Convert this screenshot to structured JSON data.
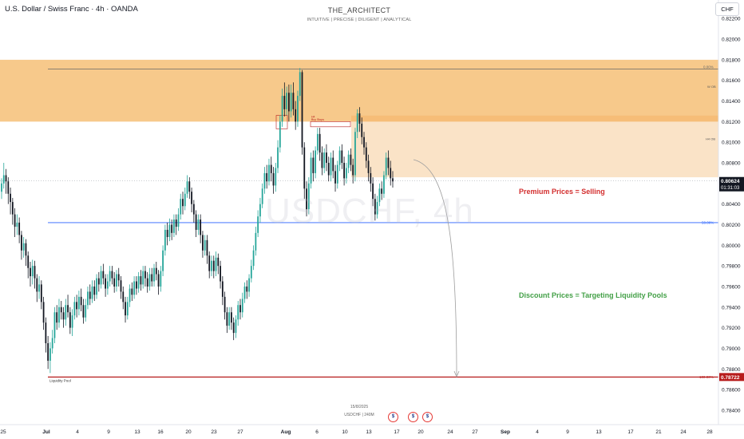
{
  "header": {
    "symbol_line": "U.S. Dollar / Swiss Franc · 4h · OANDA",
    "author": "THE_ARCHITECT",
    "tagline": "INTUITIVE | PRECISE | DILIGENT | ANALYTICAL",
    "currency": "CHF"
  },
  "watermark": "USDCHF, 4h",
  "annotations": {
    "premium": "Premium Prices = Selling",
    "discount": "Discount Prices = Targeting Liquidity Pools",
    "liquidity_pool": "Liquidity Pool",
    "fib_0": "0.00%",
    "fib_50": "50.00%",
    "fib_100": "100.00%",
    "w_ob": "W OB",
    "h4_ob": "H4 OB",
    "buy_stops": "H4\nBuy Stops",
    "date_stamp": "15/8/2025",
    "symbol_stamp": "USDCHF | 240M"
  },
  "colors": {
    "up": "#26a69a",
    "down": "#131722",
    "weekly_ob": "#f7c98b",
    "h4_ob": "#fae3c7",
    "h4_ob_edge": "#f5b66a",
    "blue_line": "#2962ff",
    "red_line": "#b71c1c",
    "price_tag": "#131722",
    "pool_tag": "#b71c1c",
    "premium_text": "#d32f2f",
    "discount_text": "#43a047"
  },
  "icons": [
    "us-flag-event-icon",
    "us-flag-event-icon",
    "us-flag-event-icon"
  ],
  "chart_data": {
    "type": "candlestick",
    "symbol": "USDCHF",
    "timeframe": "4h",
    "y_axis": {
      "ticks": [
        0.822,
        0.82,
        0.818,
        0.816,
        0.814,
        0.812,
        0.81,
        0.808,
        0.806,
        0.804,
        0.802,
        0.8,
        0.798,
        0.796,
        0.794,
        0.792,
        0.79,
        0.788,
        0.786,
        0.784
      ],
      "tick_labels": [
        "0.82200",
        "0.82000",
        "0.81800",
        "0.81600",
        "0.81400",
        "0.81200",
        "0.81000",
        "0.80800",
        "0.80600",
        "0.80400",
        "0.80200",
        "0.80000",
        "0.79800",
        "0.79600",
        "0.79400",
        "0.79200",
        "0.79000",
        "0.78800",
        "0.78600",
        "0.78400"
      ],
      "range": [
        0.7826,
        0.8238
      ]
    },
    "x_axis": {
      "tick_labels": [
        "25",
        "Jul",
        "4",
        "9",
        "13",
        "16",
        "20",
        "23",
        "27",
        "Aug",
        "6",
        "10",
        "13",
        "17",
        "20",
        "24",
        "27",
        "Sep",
        "4",
        "9",
        "13",
        "17",
        "21",
        "24",
        "28"
      ],
      "bold_labels": [
        "Jul",
        "Aug",
        "Sep"
      ]
    },
    "current_price": {
      "value": 0.80624,
      "label": "0.80624",
      "countdown": "01:31:03"
    },
    "liquidity_pool_price": {
      "value": 0.78722,
      "label": "0.78722"
    },
    "zones": [
      {
        "name": "Weekly OB",
        "from": 0.812,
        "to": 0.818
      },
      {
        "name": "H4 OB",
        "from": 0.8066,
        "to": 0.8126
      }
    ],
    "levels": [
      {
        "name": "fib-0",
        "value": 0.8171
      },
      {
        "name": "fib-50",
        "value": 0.8022
      },
      {
        "name": "fib-100",
        "value": 0.78722
      }
    ],
    "candles": [
      [
        0.8052,
        0.806,
        0.8045,
        0.8065
      ],
      [
        0.806,
        0.8068,
        0.8055,
        0.808
      ],
      [
        0.8068,
        0.8062,
        0.805,
        0.8074
      ],
      [
        0.8062,
        0.805,
        0.804,
        0.8066
      ],
      [
        0.805,
        0.8042,
        0.803,
        0.8056
      ],
      [
        0.8042,
        0.803,
        0.802,
        0.8046
      ],
      [
        0.803,
        0.8018,
        0.8008,
        0.8036
      ],
      [
        0.8018,
        0.8022,
        0.801,
        0.803
      ],
      [
        0.8022,
        0.801,
        0.8002,
        0.8027
      ],
      [
        0.801,
        0.7995,
        0.7986,
        0.8014
      ],
      [
        0.7995,
        0.8002,
        0.7988,
        0.8008
      ],
      [
        0.8002,
        0.799,
        0.798,
        0.8006
      ],
      [
        0.799,
        0.7978,
        0.7968,
        0.7994
      ],
      [
        0.7978,
        0.797,
        0.796,
        0.7984
      ],
      [
        0.797,
        0.798,
        0.7962,
        0.7986
      ],
      [
        0.798,
        0.7968,
        0.7958,
        0.7985
      ],
      [
        0.7968,
        0.7955,
        0.7945,
        0.7972
      ],
      [
        0.7955,
        0.7962,
        0.7948,
        0.797
      ],
      [
        0.7962,
        0.7945,
        0.7938,
        0.7966
      ],
      [
        0.7945,
        0.7925,
        0.7918,
        0.795
      ],
      [
        0.7925,
        0.7905,
        0.7896,
        0.793
      ],
      [
        0.7905,
        0.7888,
        0.788,
        0.7912
      ],
      [
        0.7888,
        0.79,
        0.7876,
        0.7906
      ],
      [
        0.79,
        0.791,
        0.7895,
        0.7918
      ],
      [
        0.791,
        0.7935,
        0.7905,
        0.794
      ],
      [
        0.7935,
        0.7925,
        0.7918,
        0.7942
      ],
      [
        0.7925,
        0.794,
        0.792,
        0.7948
      ],
      [
        0.794,
        0.7935,
        0.7928,
        0.7946
      ],
      [
        0.7935,
        0.7928,
        0.792,
        0.794
      ],
      [
        0.7928,
        0.7942,
        0.7922,
        0.7948
      ],
      [
        0.7942,
        0.7935,
        0.793,
        0.7952
      ],
      [
        0.7935,
        0.792,
        0.7914,
        0.794
      ],
      [
        0.792,
        0.7932,
        0.7912,
        0.7938
      ],
      [
        0.7932,
        0.7945,
        0.7928,
        0.795
      ],
      [
        0.7945,
        0.7938,
        0.793,
        0.7952
      ],
      [
        0.7938,
        0.795,
        0.7932,
        0.7956
      ],
      [
        0.795,
        0.7942,
        0.7936,
        0.7958
      ],
      [
        0.7942,
        0.793,
        0.7924,
        0.7948
      ],
      [
        0.793,
        0.7942,
        0.7926,
        0.7948
      ],
      [
        0.7942,
        0.7955,
        0.7938,
        0.796
      ],
      [
        0.7955,
        0.7948,
        0.7942,
        0.7962
      ],
      [
        0.7948,
        0.796,
        0.7944,
        0.7966
      ],
      [
        0.796,
        0.7952,
        0.7946,
        0.7966
      ],
      [
        0.7952,
        0.7968,
        0.7948,
        0.7972
      ],
      [
        0.7968,
        0.7962,
        0.7955,
        0.7974
      ],
      [
        0.7962,
        0.7975,
        0.7958,
        0.798
      ],
      [
        0.7975,
        0.7968,
        0.7962,
        0.7982
      ],
      [
        0.7968,
        0.7958,
        0.795,
        0.7972
      ],
      [
        0.7958,
        0.7965,
        0.7952,
        0.7972
      ],
      [
        0.7965,
        0.7975,
        0.796,
        0.798
      ],
      [
        0.7975,
        0.7968,
        0.7962,
        0.798
      ],
      [
        0.7968,
        0.796,
        0.7954,
        0.7974
      ],
      [
        0.796,
        0.7972,
        0.7955,
        0.7976
      ],
      [
        0.7972,
        0.7966,
        0.796,
        0.7978
      ],
      [
        0.7966,
        0.7955,
        0.7948,
        0.797
      ],
      [
        0.7955,
        0.7945,
        0.7938,
        0.796
      ],
      [
        0.7945,
        0.7932,
        0.7925,
        0.795
      ],
      [
        0.7932,
        0.7945,
        0.7928,
        0.795
      ],
      [
        0.7945,
        0.7958,
        0.794,
        0.7962
      ],
      [
        0.7958,
        0.7952,
        0.7946,
        0.7964
      ],
      [
        0.7952,
        0.7965,
        0.7948,
        0.797
      ],
      [
        0.7965,
        0.7958,
        0.7952,
        0.797
      ],
      [
        0.7958,
        0.797,
        0.7954,
        0.7974
      ],
      [
        0.797,
        0.7962,
        0.7956,
        0.7976
      ],
      [
        0.7962,
        0.7975,
        0.7958,
        0.798
      ],
      [
        0.7975,
        0.7968,
        0.796,
        0.798
      ],
      [
        0.7968,
        0.796,
        0.7954,
        0.7974
      ],
      [
        0.796,
        0.7972,
        0.7956,
        0.7978
      ],
      [
        0.7972,
        0.7965,
        0.796,
        0.7978
      ],
      [
        0.7965,
        0.7978,
        0.796,
        0.7982
      ],
      [
        0.7978,
        0.7972,
        0.7966,
        0.7984
      ],
      [
        0.7972,
        0.796,
        0.7952,
        0.7976
      ],
      [
        0.796,
        0.7975,
        0.7955,
        0.798
      ],
      [
        0.7975,
        0.7995,
        0.797,
        0.8
      ],
      [
        0.7995,
        0.8015,
        0.799,
        0.802
      ],
      [
        0.8015,
        0.8008,
        0.8,
        0.8022
      ],
      [
        0.8008,
        0.802,
        0.8004,
        0.8026
      ],
      [
        0.802,
        0.8012,
        0.8005,
        0.8025
      ],
      [
        0.8012,
        0.8025,
        0.8008,
        0.803
      ],
      [
        0.8025,
        0.8018,
        0.801,
        0.803
      ],
      [
        0.8018,
        0.803,
        0.8014,
        0.8036
      ],
      [
        0.803,
        0.8045,
        0.8025,
        0.805
      ],
      [
        0.8045,
        0.8038,
        0.803,
        0.8052
      ],
      [
        0.8038,
        0.805,
        0.8034,
        0.8056
      ],
      [
        0.805,
        0.8062,
        0.8046,
        0.8068
      ],
      [
        0.8062,
        0.8052,
        0.8045,
        0.8066
      ],
      [
        0.8052,
        0.804,
        0.8032,
        0.8056
      ],
      [
        0.804,
        0.803,
        0.8022,
        0.8044
      ],
      [
        0.803,
        0.8015,
        0.8008,
        0.8034
      ],
      [
        0.8015,
        0.8025,
        0.801,
        0.803
      ],
      [
        0.8025,
        0.801,
        0.8002,
        0.803
      ],
      [
        0.801,
        0.7995,
        0.7988,
        0.8014
      ],
      [
        0.7995,
        0.8005,
        0.799,
        0.801
      ],
      [
        0.8005,
        0.799,
        0.7982,
        0.801
      ],
      [
        0.799,
        0.7975,
        0.7968,
        0.7994
      ],
      [
        0.7975,
        0.7985,
        0.797,
        0.799
      ],
      [
        0.7985,
        0.7975,
        0.7968,
        0.799
      ],
      [
        0.7975,
        0.7988,
        0.797,
        0.7994
      ],
      [
        0.7988,
        0.798,
        0.7972,
        0.7992
      ],
      [
        0.798,
        0.7965,
        0.7958,
        0.7985
      ],
      [
        0.7965,
        0.795,
        0.7942,
        0.797
      ],
      [
        0.795,
        0.7935,
        0.7928,
        0.7955
      ],
      [
        0.7935,
        0.7922,
        0.7915,
        0.794
      ],
      [
        0.7922,
        0.7935,
        0.7918,
        0.794
      ],
      [
        0.7935,
        0.7925,
        0.7918,
        0.794
      ],
      [
        0.7925,
        0.7915,
        0.7908,
        0.793
      ],
      [
        0.7915,
        0.7928,
        0.791,
        0.7932
      ],
      [
        0.7928,
        0.7942,
        0.7922,
        0.7946
      ],
      [
        0.7942,
        0.7935,
        0.7928,
        0.7948
      ],
      [
        0.7935,
        0.7948,
        0.793,
        0.7954
      ],
      [
        0.7948,
        0.796,
        0.7944,
        0.7964
      ],
      [
        0.796,
        0.7955,
        0.7948,
        0.7966
      ],
      [
        0.7955,
        0.7968,
        0.795,
        0.7972
      ],
      [
        0.7968,
        0.798,
        0.7964,
        0.7986
      ],
      [
        0.798,
        0.7995,
        0.7976,
        0.8
      ],
      [
        0.7995,
        0.8012,
        0.799,
        0.8018
      ],
      [
        0.8012,
        0.8028,
        0.8008,
        0.8034
      ],
      [
        0.8028,
        0.804,
        0.8022,
        0.8046
      ],
      [
        0.804,
        0.8055,
        0.8036,
        0.806
      ],
      [
        0.8055,
        0.807,
        0.805,
        0.8076
      ],
      [
        0.807,
        0.8062,
        0.8055,
        0.8078
      ],
      [
        0.8062,
        0.8078,
        0.8058,
        0.8084
      ],
      [
        0.8078,
        0.807,
        0.8062,
        0.8086
      ],
      [
        0.807,
        0.8058,
        0.805,
        0.8076
      ],
      [
        0.8058,
        0.8075,
        0.8052,
        0.808
      ],
      [
        0.8075,
        0.8095,
        0.807,
        0.8102
      ],
      [
        0.8095,
        0.812,
        0.809,
        0.8126
      ],
      [
        0.812,
        0.8145,
        0.8115,
        0.8152
      ],
      [
        0.8145,
        0.8132,
        0.8125,
        0.8158
      ],
      [
        0.8132,
        0.8148,
        0.8126,
        0.8154
      ],
      [
        0.8148,
        0.813,
        0.812,
        0.8156
      ],
      [
        0.813,
        0.8148,
        0.8124,
        0.8156
      ],
      [
        0.8148,
        0.8132,
        0.8126,
        0.8158
      ],
      [
        0.8132,
        0.812,
        0.8112,
        0.814
      ],
      [
        0.812,
        0.8145,
        0.8115,
        0.815
      ],
      [
        0.8145,
        0.8168,
        0.814,
        0.8172
      ],
      [
        0.8168,
        0.8095,
        0.8088,
        0.817
      ],
      [
        0.8095,
        0.8055,
        0.8045,
        0.81
      ],
      [
        0.8055,
        0.8035,
        0.8028,
        0.8062
      ],
      [
        0.8035,
        0.806,
        0.803,
        0.8066
      ],
      [
        0.806,
        0.8085,
        0.8055,
        0.809
      ],
      [
        0.8085,
        0.807,
        0.8062,
        0.8092
      ],
      [
        0.807,
        0.8092,
        0.8065,
        0.8096
      ],
      [
        0.8092,
        0.8108,
        0.8088,
        0.8114
      ],
      [
        0.8108,
        0.809,
        0.8082,
        0.8114
      ],
      [
        0.809,
        0.8075,
        0.8068,
        0.8096
      ],
      [
        0.8075,
        0.809,
        0.807,
        0.8094
      ],
      [
        0.809,
        0.808,
        0.8072,
        0.8098
      ],
      [
        0.808,
        0.8068,
        0.8062,
        0.8086
      ],
      [
        0.8068,
        0.8085,
        0.8062,
        0.809
      ],
      [
        0.8085,
        0.8072,
        0.8065,
        0.8092
      ],
      [
        0.8072,
        0.806,
        0.8052,
        0.8078
      ],
      [
        0.806,
        0.8078,
        0.8055,
        0.8082
      ],
      [
        0.8078,
        0.8092,
        0.8072,
        0.8096
      ],
      [
        0.8092,
        0.808,
        0.8074,
        0.8098
      ],
      [
        0.808,
        0.8065,
        0.8058,
        0.8086
      ],
      [
        0.8065,
        0.8075,
        0.806,
        0.808
      ],
      [
        0.8075,
        0.8088,
        0.807,
        0.8092
      ],
      [
        0.8088,
        0.8078,
        0.8072,
        0.8094
      ],
      [
        0.8078,
        0.8068,
        0.806,
        0.8084
      ],
      [
        0.8068,
        0.811,
        0.8062,
        0.8114
      ],
      [
        0.811,
        0.8128,
        0.8104,
        0.8132
      ],
      [
        0.8128,
        0.8118,
        0.811,
        0.8134
      ],
      [
        0.8118,
        0.8105,
        0.8098,
        0.8124
      ],
      [
        0.8105,
        0.8095,
        0.8088,
        0.811
      ],
      [
        0.8095,
        0.8082,
        0.8075,
        0.81
      ],
      [
        0.8082,
        0.807,
        0.8062,
        0.8088
      ],
      [
        0.807,
        0.806,
        0.8052,
        0.8076
      ],
      [
        0.806,
        0.8045,
        0.8038,
        0.8066
      ],
      [
        0.8045,
        0.803,
        0.8024,
        0.805
      ],
      [
        0.803,
        0.8042,
        0.8026,
        0.8048
      ],
      [
        0.8042,
        0.8055,
        0.8038,
        0.806
      ],
      [
        0.8055,
        0.805,
        0.8044,
        0.8062
      ],
      [
        0.805,
        0.8068,
        0.8046,
        0.8072
      ],
      [
        0.8068,
        0.8085,
        0.8064,
        0.809
      ],
      [
        0.8085,
        0.8075,
        0.8068,
        0.8092
      ],
      [
        0.8075,
        0.8065,
        0.8058,
        0.8082
      ],
      [
        0.8065,
        0.8062,
        0.8056,
        0.8072
      ]
    ]
  }
}
